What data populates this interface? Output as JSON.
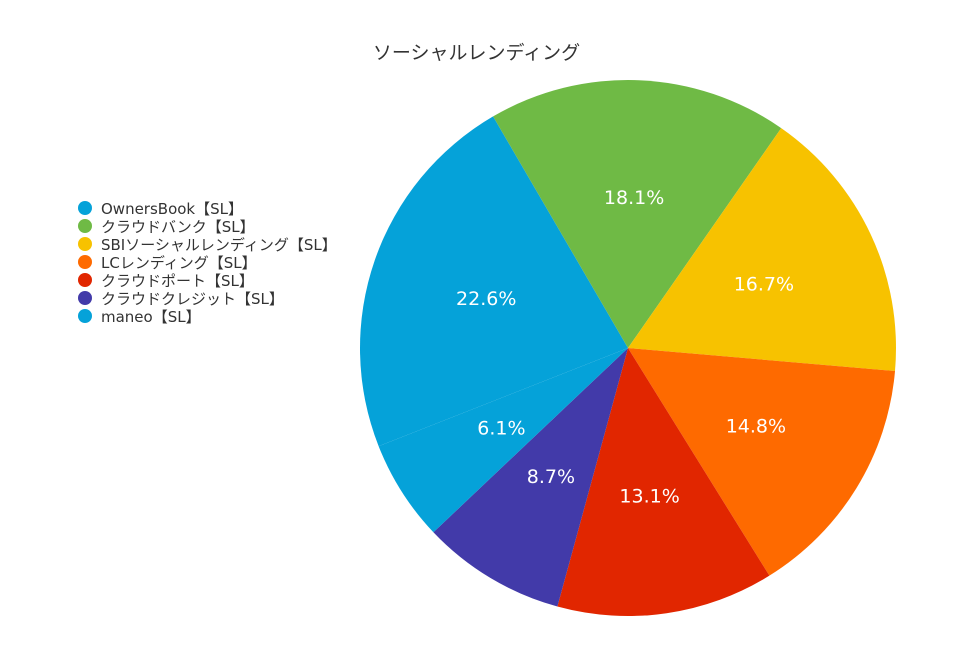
{
  "chart_data": {
    "type": "pie",
    "title": "ソーシャルレンディング",
    "legend_position": "left",
    "slices": [
      {
        "name": "OwnersBook【SL】",
        "value": 22.6,
        "label": "22.6%",
        "color": "#05a2d9"
      },
      {
        "name": "クラウドバンク【SL】",
        "value": 18.1,
        "label": "18.1%",
        "color": "#6fba45"
      },
      {
        "name": "SBIソーシャルレンディング【SL】",
        "value": 16.7,
        "label": "16.7%",
        "color": "#f7c200"
      },
      {
        "name": "LCレンディング【SL】",
        "value": 14.8,
        "label": "14.8%",
        "color": "#fe6a00"
      },
      {
        "name": "クラウドポート【SL】",
        "value": 13.1,
        "label": "13.1%",
        "color": "#e12600"
      },
      {
        "name": "クラウドクレジット【SL】",
        "value": 8.7,
        "label": "8.7%",
        "color": "#423aa9"
      },
      {
        "name": "maneo【SL】",
        "value": 6.1,
        "label": "6.1%",
        "color": "#05a2d9"
      }
    ]
  }
}
